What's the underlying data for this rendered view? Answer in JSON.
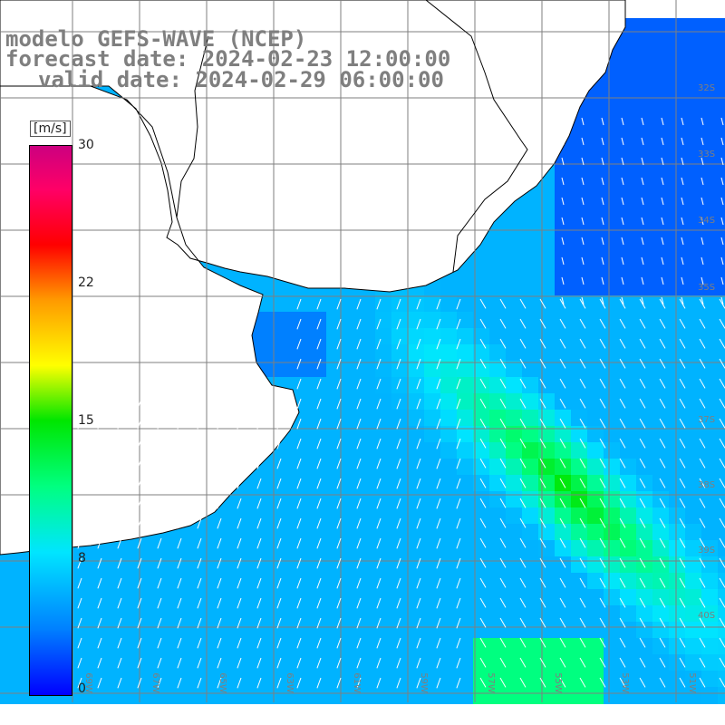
{
  "header": {
    "line1": "modelo GEFS-WAVE (NCEP)",
    "line2": "forecast date: 2024-02-23 12:00:00",
    "line3": "valid date: 2024-02-29 06:00:00"
  },
  "colorbar": {
    "unit": "[m/s]",
    "min": 0,
    "max": 30,
    "ticks": [
      "0",
      "8",
      "15",
      "22",
      "30"
    ],
    "colors": [
      "#0000ff",
      "#0080ff",
      "#00e5ff",
      "#00ff80",
      "#00e600",
      "#ffff00",
      "#ff9900",
      "#ff0000",
      "#ff0066",
      "#cc0080"
    ]
  },
  "map": {
    "lon_range": [
      -70,
      -48
    ],
    "lat_range": [
      -42,
      -30
    ],
    "land_color": "#ffffff",
    "grid_color": "#7f7f7f",
    "lat_labels": [
      "32S",
      "33S",
      "34S",
      "35S",
      "37S",
      "38S",
      "39S",
      "40S"
    ],
    "lon_labels": [
      "69W",
      "67W",
      "65W",
      "63W",
      "61W",
      "59W",
      "57W",
      "55W",
      "53W",
      "51W",
      "49W"
    ]
  }
}
